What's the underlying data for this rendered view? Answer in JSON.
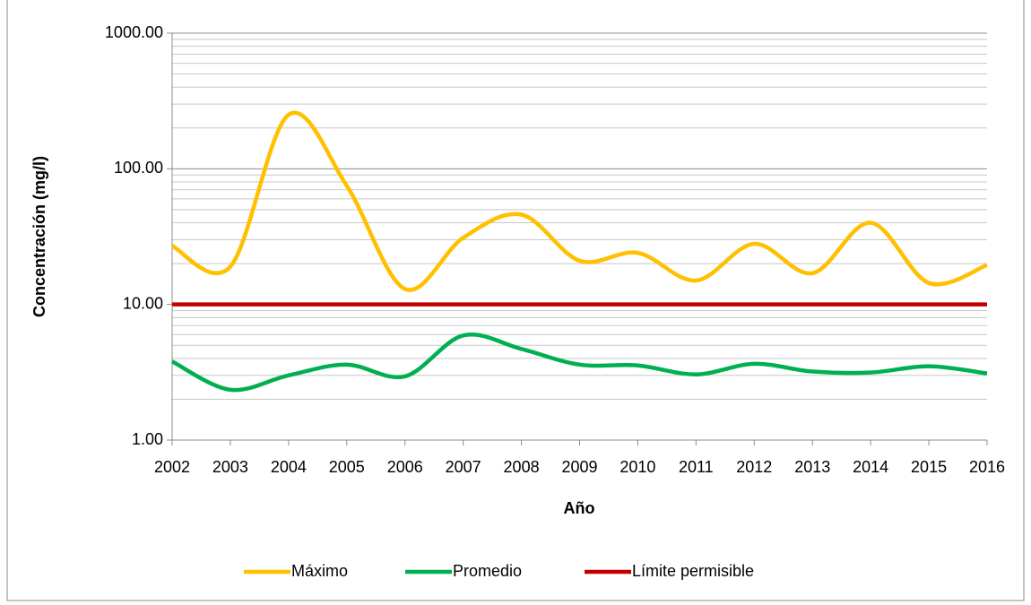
{
  "chart_data": {
    "type": "line",
    "x_label": "Año",
    "y_label": "Concentración (mg/l)",
    "categories": [
      "2002",
      "2003",
      "2004",
      "2005",
      "2006",
      "2007",
      "2008",
      "2009",
      "2010",
      "2011",
      "2012",
      "2013",
      "2014",
      "2015",
      "2016"
    ],
    "series": [
      {
        "name": "Máximo",
        "color": "#ffc000",
        "values": [
          27,
          19,
          250,
          75,
          13,
          31,
          46,
          21,
          24,
          15,
          28,
          17,
          40,
          14.4,
          19.5
        ]
      },
      {
        "name": "Promedio",
        "color": "#00b050",
        "values": [
          3.8,
          2.35,
          3.0,
          3.6,
          2.95,
          5.9,
          4.7,
          3.6,
          3.55,
          3.05,
          3.65,
          3.2,
          3.15,
          3.5,
          3.1
        ]
      },
      {
        "name": "Límite permisible",
        "color": "#c00000",
        "values": [
          10,
          10,
          10,
          10,
          10,
          10,
          10,
          10,
          10,
          10,
          10,
          10,
          10,
          10,
          10
        ]
      }
    ],
    "log_scale": true,
    "ylim": [
      1,
      1000
    ],
    "yticks": [
      {
        "value": 1,
        "label": "1.00"
      },
      {
        "value": 10,
        "label": "10.00"
      },
      {
        "value": 100,
        "label": "100.00"
      },
      {
        "value": 1000,
        "label": "1000.00"
      }
    ],
    "grid": true,
    "minor_grid": true,
    "smooth": true,
    "legend": "bottom"
  }
}
